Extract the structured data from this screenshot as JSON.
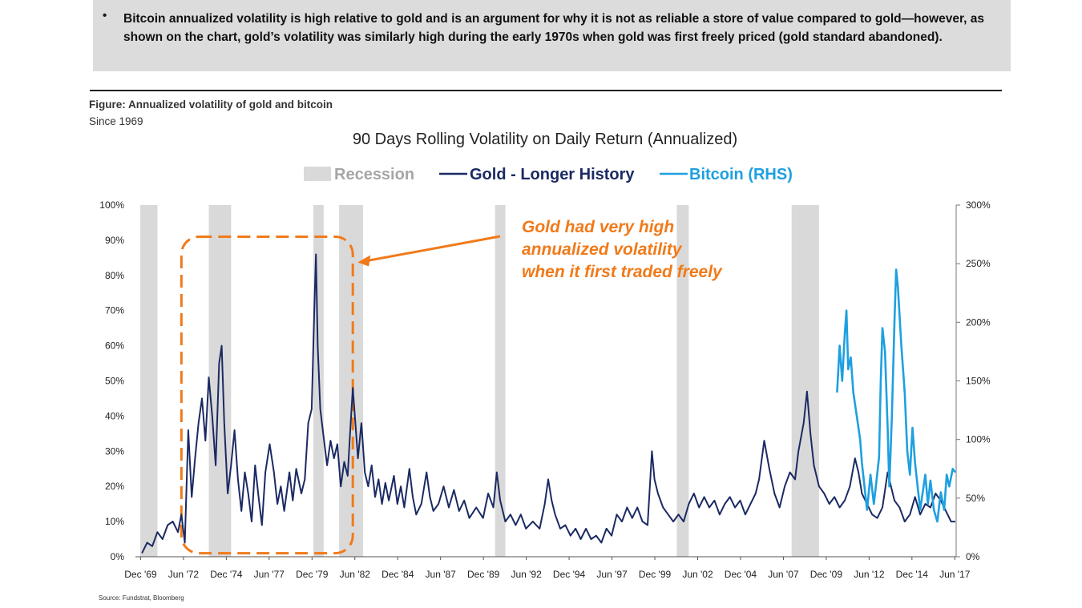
{
  "bullet": {
    "marker": "•",
    "text": "Bitcoin annualized volatility is high relative to gold and is an argument for why it is not as reliable a store of value compared to gold—however, as shown on the chart, gold’s volatility was similarly high during the early 1970s when gold was first freely priced (gold standard abandoned)."
  },
  "figure": {
    "title": "Figure: Annualized volatility of gold and bitcoin",
    "subtitle": "Since 1969",
    "source": "Source: Fundstrat, Bloomberg"
  },
  "colors": {
    "gold": "#1b2a63",
    "bitcoin": "#1ea0e0",
    "recession": "#d9d9d9",
    "annotation": "#f07a1a"
  },
  "chart_data": {
    "type": "line",
    "title": "90 Days Rolling Volatility on Daily Return (Annualized)",
    "legend": {
      "placement": "top-center",
      "items": [
        "Recession",
        "Gold - Longer History",
        "Bitcoin (RHS)"
      ]
    },
    "x_range": [
      1969.9,
      2017.5
    ],
    "x_ticks": [
      "Dec '69",
      "Jun '72",
      "Dec '74",
      "Jun '77",
      "Dec '79",
      "Jun '82",
      "Dec '84",
      "Jun '87",
      "Dec '89",
      "Jun '92",
      "Dec '94",
      "Jun '97",
      "Dec '99",
      "Jun '02",
      "Dec '04",
      "Jun '07",
      "Dec '09",
      "Jun '12",
      "Dec '14",
      "Jun '17"
    ],
    "x_tick_years": [
      1969.92,
      1972.42,
      1974.92,
      1977.42,
      1979.92,
      1982.42,
      1984.92,
      1987.42,
      1989.92,
      1992.42,
      1994.92,
      1997.42,
      1999.92,
      2002.42,
      2004.92,
      2007.42,
      2009.92,
      2012.42,
      2014.92,
      2017.42
    ],
    "y_left": {
      "range": [
        0,
        100
      ],
      "ticks": [
        "0%",
        "10%",
        "20%",
        "30%",
        "40%",
        "50%",
        "60%",
        "70%",
        "80%",
        "90%",
        "100%"
      ]
    },
    "y_right": {
      "range": [
        0,
        300
      ],
      "ticks": [
        "0%",
        "50%",
        "100%",
        "150%",
        "200%",
        "250%",
        "300%"
      ]
    },
    "recessions": [
      [
        1969.9,
        1970.9
      ],
      [
        1973.9,
        1975.2
      ],
      [
        1980.0,
        1980.6
      ],
      [
        1981.5,
        1982.9
      ],
      [
        1990.6,
        1991.2
      ],
      [
        2001.2,
        2001.9
      ],
      [
        2007.9,
        2009.5
      ]
    ],
    "series": [
      {
        "name": "Gold - Longer History",
        "axis": "left",
        "points": [
          [
            1970.0,
            1
          ],
          [
            1970.3,
            4
          ],
          [
            1970.6,
            3
          ],
          [
            1970.9,
            7
          ],
          [
            1971.2,
            5
          ],
          [
            1971.5,
            9
          ],
          [
            1971.8,
            10
          ],
          [
            1972.1,
            7
          ],
          [
            1972.3,
            12
          ],
          [
            1972.5,
            4
          ],
          [
            1972.7,
            36
          ],
          [
            1972.9,
            17
          ],
          [
            1973.1,
            28
          ],
          [
            1973.3,
            38
          ],
          [
            1973.5,
            45
          ],
          [
            1973.7,
            33
          ],
          [
            1973.9,
            51
          ],
          [
            1974.1,
            40
          ],
          [
            1974.3,
            26
          ],
          [
            1974.5,
            55
          ],
          [
            1974.65,
            60
          ],
          [
            1974.8,
            38
          ],
          [
            1975.0,
            18
          ],
          [
            1975.2,
            26
          ],
          [
            1975.4,
            36
          ],
          [
            1975.6,
            22
          ],
          [
            1975.8,
            13
          ],
          [
            1976.0,
            24
          ],
          [
            1976.2,
            18
          ],
          [
            1976.4,
            10
          ],
          [
            1976.6,
            26
          ],
          [
            1976.8,
            17
          ],
          [
            1977.0,
            9
          ],
          [
            1977.2,
            24
          ],
          [
            1977.45,
            32
          ],
          [
            1977.7,
            24
          ],
          [
            1977.9,
            15
          ],
          [
            1978.1,
            20
          ],
          [
            1978.3,
            13
          ],
          [
            1978.6,
            24
          ],
          [
            1978.8,
            16
          ],
          [
            1979.0,
            25
          ],
          [
            1979.3,
            18
          ],
          [
            1979.5,
            22
          ],
          [
            1979.7,
            38
          ],
          [
            1979.9,
            42
          ],
          [
            1980.05,
            70
          ],
          [
            1980.15,
            86
          ],
          [
            1980.25,
            60
          ],
          [
            1980.4,
            42
          ],
          [
            1980.6,
            34
          ],
          [
            1980.8,
            26
          ],
          [
            1981.0,
            33
          ],
          [
            1981.2,
            28
          ],
          [
            1981.4,
            32
          ],
          [
            1981.6,
            20
          ],
          [
            1981.8,
            27
          ],
          [
            1982.0,
            23
          ],
          [
            1982.15,
            36
          ],
          [
            1982.3,
            48
          ],
          [
            1982.45,
            38
          ],
          [
            1982.6,
            28
          ],
          [
            1982.8,
            38
          ],
          [
            1983.0,
            24
          ],
          [
            1983.2,
            20
          ],
          [
            1983.4,
            26
          ],
          [
            1983.6,
            17
          ],
          [
            1983.8,
            22
          ],
          [
            1984.0,
            15
          ],
          [
            1984.2,
            21
          ],
          [
            1984.4,
            16
          ],
          [
            1984.7,
            23
          ],
          [
            1984.9,
            15
          ],
          [
            1985.1,
            20
          ],
          [
            1985.3,
            14
          ],
          [
            1985.6,
            25
          ],
          [
            1985.8,
            17
          ],
          [
            1986.0,
            12
          ],
          [
            1986.3,
            15
          ],
          [
            1986.6,
            24
          ],
          [
            1986.8,
            17
          ],
          [
            1987.0,
            13
          ],
          [
            1987.3,
            15
          ],
          [
            1987.6,
            20
          ],
          [
            1987.9,
            14
          ],
          [
            1988.2,
            19
          ],
          [
            1988.5,
            13
          ],
          [
            1988.8,
            16
          ],
          [
            1989.1,
            11
          ],
          [
            1989.5,
            14
          ],
          [
            1989.9,
            11
          ],
          [
            1990.2,
            18
          ],
          [
            1990.5,
            14
          ],
          [
            1990.7,
            24
          ],
          [
            1990.9,
            16
          ],
          [
            1991.2,
            10
          ],
          [
            1991.5,
            12
          ],
          [
            1991.8,
            9
          ],
          [
            1992.1,
            12
          ],
          [
            1992.4,
            8
          ],
          [
            1992.8,
            10
          ],
          [
            1993.2,
            8
          ],
          [
            1993.5,
            15
          ],
          [
            1993.7,
            22
          ],
          [
            1993.9,
            16
          ],
          [
            1994.1,
            12
          ],
          [
            1994.4,
            8
          ],
          [
            1994.7,
            9
          ],
          [
            1995.0,
            6
          ],
          [
            1995.3,
            8
          ],
          [
            1995.6,
            5
          ],
          [
            1995.9,
            8
          ],
          [
            1996.2,
            5
          ],
          [
            1996.5,
            6
          ],
          [
            1996.8,
            4
          ],
          [
            1997.1,
            8
          ],
          [
            1997.4,
            6
          ],
          [
            1997.7,
            12
          ],
          [
            1998.0,
            10
          ],
          [
            1998.3,
            14
          ],
          [
            1998.6,
            11
          ],
          [
            1998.9,
            14
          ],
          [
            1999.2,
            10
          ],
          [
            1999.5,
            9
          ],
          [
            1999.75,
            30
          ],
          [
            1999.9,
            22
          ],
          [
            2000.1,
            18
          ],
          [
            2000.4,
            14
          ],
          [
            2000.7,
            12
          ],
          [
            2001.0,
            10
          ],
          [
            2001.3,
            12
          ],
          [
            2001.6,
            10
          ],
          [
            2001.9,
            15
          ],
          [
            2002.2,
            18
          ],
          [
            2002.5,
            14
          ],
          [
            2002.8,
            17
          ],
          [
            2003.1,
            14
          ],
          [
            2003.4,
            16
          ],
          [
            2003.7,
            12
          ],
          [
            2004.0,
            15
          ],
          [
            2004.3,
            17
          ],
          [
            2004.6,
            14
          ],
          [
            2004.9,
            16
          ],
          [
            2005.2,
            12
          ],
          [
            2005.5,
            15
          ],
          [
            2005.8,
            18
          ],
          [
            2006.0,
            22
          ],
          [
            2006.3,
            33
          ],
          [
            2006.6,
            25
          ],
          [
            2006.9,
            18
          ],
          [
            2007.2,
            14
          ],
          [
            2007.5,
            20
          ],
          [
            2007.8,
            24
          ],
          [
            2008.1,
            22
          ],
          [
            2008.3,
            30
          ],
          [
            2008.6,
            38
          ],
          [
            2008.8,
            47
          ],
          [
            2009.0,
            35
          ],
          [
            2009.2,
            26
          ],
          [
            2009.5,
            20
          ],
          [
            2009.8,
            18
          ],
          [
            2010.1,
            15
          ],
          [
            2010.4,
            17
          ],
          [
            2010.7,
            14
          ],
          [
            2011.0,
            16
          ],
          [
            2011.3,
            20
          ],
          [
            2011.6,
            28
          ],
          [
            2011.8,
            24
          ],
          [
            2012.0,
            18
          ],
          [
            2012.3,
            15
          ],
          [
            2012.6,
            12
          ],
          [
            2012.9,
            11
          ],
          [
            2013.2,
            14
          ],
          [
            2013.5,
            24
          ],
          [
            2013.7,
            20
          ],
          [
            2013.9,
            16
          ],
          [
            2014.2,
            14
          ],
          [
            2014.5,
            10
          ],
          [
            2014.8,
            12
          ],
          [
            2015.1,
            17
          ],
          [
            2015.4,
            12
          ],
          [
            2015.7,
            15
          ],
          [
            2016.0,
            14
          ],
          [
            2016.3,
            18
          ],
          [
            2016.6,
            16
          ],
          [
            2016.9,
            13
          ],
          [
            2017.2,
            10
          ],
          [
            2017.45,
            10
          ]
        ]
      },
      {
        "name": "Bitcoin (RHS)",
        "axis": "right",
        "points": [
          [
            2010.55,
            140
          ],
          [
            2010.7,
            180
          ],
          [
            2010.85,
            150
          ],
          [
            2011.0,
            190
          ],
          [
            2011.1,
            210
          ],
          [
            2011.2,
            160
          ],
          [
            2011.35,
            170
          ],
          [
            2011.5,
            140
          ],
          [
            2011.7,
            120
          ],
          [
            2011.9,
            100
          ],
          [
            2012.0,
            80
          ],
          [
            2012.15,
            60
          ],
          [
            2012.3,
            40
          ],
          [
            2012.5,
            70
          ],
          [
            2012.7,
            45
          ],
          [
            2012.85,
            65
          ],
          [
            2013.0,
            85
          ],
          [
            2013.1,
            150
          ],
          [
            2013.2,
            195
          ],
          [
            2013.35,
            175
          ],
          [
            2013.5,
            110
          ],
          [
            2013.6,
            60
          ],
          [
            2013.75,
            120
          ],
          [
            2013.9,
            200
          ],
          [
            2014.0,
            245
          ],
          [
            2014.1,
            230
          ],
          [
            2014.3,
            180
          ],
          [
            2014.5,
            140
          ],
          [
            2014.65,
            90
          ],
          [
            2014.8,
            70
          ],
          [
            2014.95,
            110
          ],
          [
            2015.1,
            80
          ],
          [
            2015.25,
            60
          ],
          [
            2015.4,
            40
          ],
          [
            2015.55,
            55
          ],
          [
            2015.7,
            70
          ],
          [
            2015.85,
            45
          ],
          [
            2016.0,
            65
          ],
          [
            2016.2,
            40
          ],
          [
            2016.4,
            30
          ],
          [
            2016.6,
            55
          ],
          [
            2016.8,
            40
          ],
          [
            2016.95,
            70
          ],
          [
            2017.1,
            60
          ],
          [
            2017.3,
            75
          ],
          [
            2017.45,
            72
          ]
        ]
      }
    ],
    "annotation": {
      "text": [
        "Gold had very high",
        "annualized volatility",
        "when it first traded freely"
      ],
      "x_range": [
        1972.3,
        1982.3
      ],
      "y_range": [
        1,
        91
      ]
    }
  }
}
